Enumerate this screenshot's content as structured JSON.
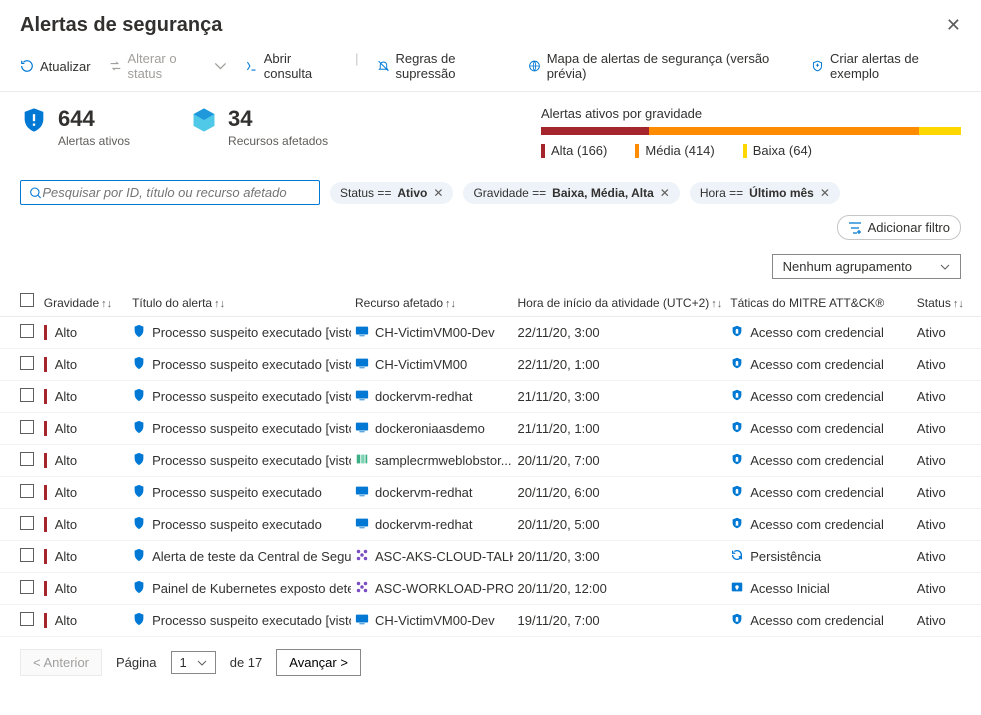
{
  "title": "Alertas de segurança",
  "toolbar": {
    "refresh": "Atualizar",
    "changeStatus": "Alterar o status",
    "openQuery": "Abrir consulta",
    "suppression": "Regras de supressão",
    "map": "Mapa de alertas de segurança (versão prévia)",
    "sample": "Criar alertas de exemplo"
  },
  "stats": {
    "activeCount": "644",
    "activeLabel": "Alertas ativos",
    "resourcesCount": "34",
    "resourcesLabel": "Recursos afetados"
  },
  "severity": {
    "title": "Alertas ativos por gravidade",
    "high": {
      "label": "Alta (166)",
      "count": 166,
      "color": "#a4262c"
    },
    "medium": {
      "label": "Média (414)",
      "count": 414,
      "color": "#ff8c00"
    },
    "low": {
      "label": "Baixa (64)",
      "count": 64,
      "color": "#ffd700"
    }
  },
  "search": {
    "placeholder": "Pesquisar por ID, título ou recurso afetado"
  },
  "filters": {
    "status": {
      "key": "Status == ",
      "val": "Ativo"
    },
    "sev": {
      "key": "Gravidade == ",
      "val": "Baixa, Média, Alta"
    },
    "time": {
      "key": "Hora == ",
      "val": "Último mês"
    },
    "add": "Adicionar filtro"
  },
  "grouping": "Nenhum agrupamento",
  "columns": {
    "sev": "Gravidade",
    "title": "Título do alerta",
    "res": "Recurso afetado",
    "time": "Hora de início da atividade (UTC+2)",
    "tac": "Táticas do MITRE ATT&CK®",
    "status": "Status"
  },
  "rows": [
    {
      "sev": "Alto",
      "title": "Processo suspeito executado [visto...",
      "res": "CH-VictimVM00-Dev",
      "resIcon": "vm",
      "time": "22/11/20, 3:00",
      "tac": "Acesso com credencial",
      "tacIcon": "cred",
      "status": "Ativo"
    },
    {
      "sev": "Alto",
      "title": "Processo suspeito executado [visto...",
      "res": "CH-VictimVM00",
      "resIcon": "vm",
      "time": "22/11/20, 1:00",
      "tac": "Acesso com credencial",
      "tacIcon": "cred",
      "status": "Ativo"
    },
    {
      "sev": "Alto",
      "title": "Processo suspeito executado [visto...",
      "res": "dockervm-redhat",
      "resIcon": "vm",
      "time": "21/11/20, 3:00",
      "tac": "Acesso com credencial",
      "tacIcon": "cred",
      "status": "Ativo"
    },
    {
      "sev": "Alto",
      "title": "Processo suspeito executado [visto...",
      "res": "dockeroniaasdemo",
      "resIcon": "vm",
      "time": "21/11/20, 1:00",
      "tac": "Acesso com credencial",
      "tacIcon": "cred",
      "status": "Ativo"
    },
    {
      "sev": "Alto",
      "title": "Processo suspeito executado [visto...",
      "res": "samplecrmweblobstor...",
      "resIcon": "storage",
      "time": "20/11/20, 7:00",
      "tac": "Acesso com credencial",
      "tacIcon": "cred",
      "status": "Ativo"
    },
    {
      "sev": "Alto",
      "title": "Processo suspeito executado",
      "res": "dockervm-redhat",
      "resIcon": "vm",
      "time": "20/11/20, 6:00",
      "tac": "Acesso com credencial",
      "tacIcon": "cred",
      "status": "Ativo"
    },
    {
      "sev": "Alto",
      "title": "Processo suspeito executado",
      "res": "dockervm-redhat",
      "resIcon": "vm",
      "time": "20/11/20, 5:00",
      "tac": "Acesso com credencial",
      "tacIcon": "cred",
      "status": "Ativo"
    },
    {
      "sev": "Alto",
      "title": "Alerta de teste da Central de Segura...",
      "res": "ASC-AKS-CLOUD-TALK",
      "resIcon": "aks",
      "time": "20/11/20, 3:00",
      "tac": "Persistência",
      "tacIcon": "persist",
      "status": "Ativo"
    },
    {
      "sev": "Alto",
      "title": "Painel de Kubernetes exposto detec...",
      "res": "ASC-WORKLOAD-PRO...",
      "resIcon": "aks",
      "time": "20/11/20, 12:00",
      "tac": "Acesso Inicial",
      "tacIcon": "initial",
      "status": "Ativo"
    },
    {
      "sev": "Alto",
      "title": "Processo suspeito executado [visto...",
      "res": "CH-VictimVM00-Dev",
      "resIcon": "vm",
      "time": "19/11/20, 7:00",
      "tac": "Acesso com credencial",
      "tacIcon": "cred",
      "status": "Ativo"
    }
  ],
  "pager": {
    "prev": "< Anterior",
    "pageLabel": "Página",
    "page": "1",
    "of": "de 17",
    "next": "Avançar >"
  },
  "icons": {
    "shield": "#0078d4",
    "vm": "#0078d4",
    "storage": "#3aaf85",
    "aks": "#7b4fc3",
    "cred": "#0078d4",
    "persist": "#0078d4",
    "initial": "#0078d4"
  }
}
